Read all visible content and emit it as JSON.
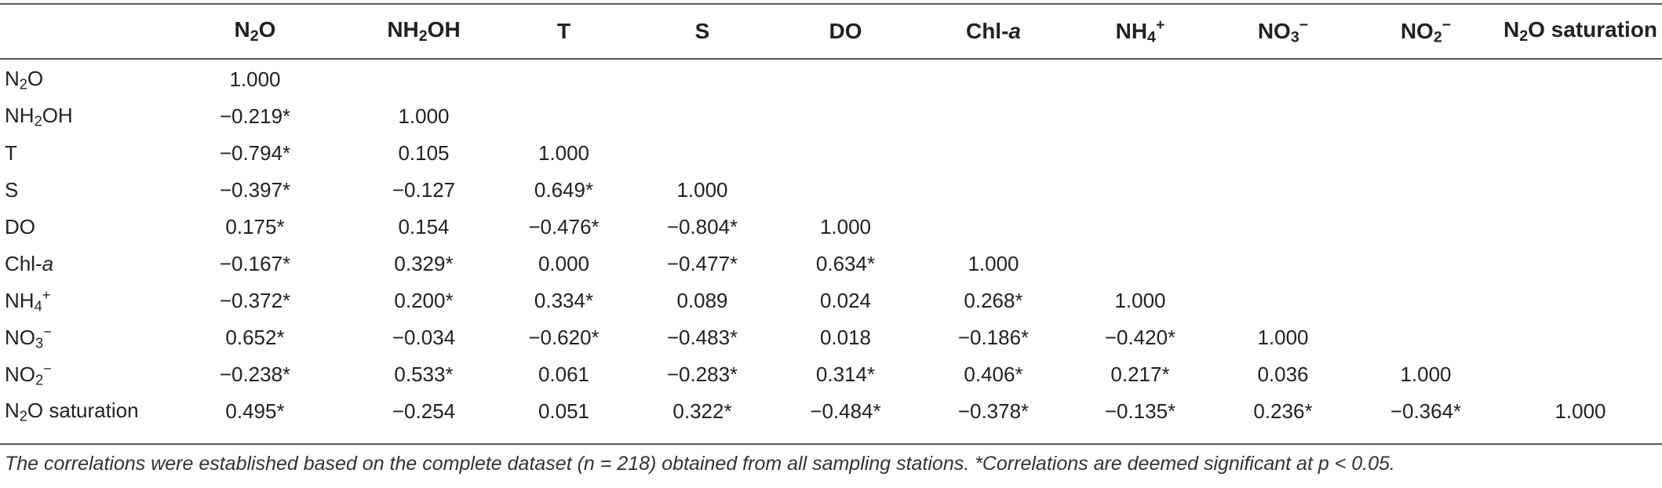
{
  "table": {
    "columns": [
      {
        "html": "N<sub>2</sub>O"
      },
      {
        "html": "NH<sub>2</sub>OH"
      },
      {
        "html": "T"
      },
      {
        "html": "S"
      },
      {
        "html": "DO"
      },
      {
        "html": "Chl-<i>a</i>"
      },
      {
        "html": "NH<sub>4</sub><sup>+</sup>"
      },
      {
        "html": "NO<sub>3</sub><sup>−</sup>"
      },
      {
        "html": "NO<sub>2</sub><sup>−</sup>"
      },
      {
        "html": "N<sub>2</sub>O saturation"
      }
    ],
    "rows": [
      {
        "label_html": "N<sub>2</sub>O",
        "values": [
          "1.000"
        ]
      },
      {
        "label_html": "NH<sub>2</sub>OH",
        "values": [
          "−0.219*",
          "1.000"
        ]
      },
      {
        "label_html": "T",
        "values": [
          "−0.794*",
          "0.105",
          "1.000"
        ]
      },
      {
        "label_html": "S",
        "values": [
          "−0.397*",
          "−0.127",
          "0.649*",
          "1.000"
        ]
      },
      {
        "label_html": "DO",
        "values": [
          "0.175*",
          "0.154",
          "−0.476*",
          "−0.804*",
          "1.000"
        ]
      },
      {
        "label_html": "Chl-<i>a</i>",
        "values": [
          "−0.167*",
          "0.329*",
          "0.000",
          "−0.477*",
          "0.634*",
          "1.000"
        ]
      },
      {
        "label_html": "NH<sub>4</sub><sup>+</sup>",
        "values": [
          "−0.372*",
          "0.200*",
          "0.334*",
          "0.089",
          "0.024",
          "0.268*",
          "1.000"
        ]
      },
      {
        "label_html": "NO<sub>3</sub><sup>−</sup>",
        "values": [
          "0.652*",
          "−0.034",
          "−0.620*",
          "−0.483*",
          "0.018",
          "−0.186*",
          "−0.420*",
          "1.000"
        ]
      },
      {
        "label_html": "NO<sub>2</sub><sup>−</sup>",
        "values": [
          "−0.238*",
          "0.533*",
          "0.061",
          "−0.283*",
          "0.314*",
          "0.406*",
          "0.217*",
          "0.036",
          "1.000"
        ]
      },
      {
        "label_html": "N<sub>2</sub>O saturation",
        "values": [
          "0.495*",
          "−0.254",
          "0.051",
          "0.322*",
          "−0.484*",
          "−0.378*",
          "−0.135*",
          "0.236*",
          "−0.364*",
          "1.000"
        ]
      }
    ]
  },
  "footnote": "The correlations were established based on the complete dataset (n = 218) obtained from all sampling stations. *Correlations are deemed significant at p < 0.05."
}
